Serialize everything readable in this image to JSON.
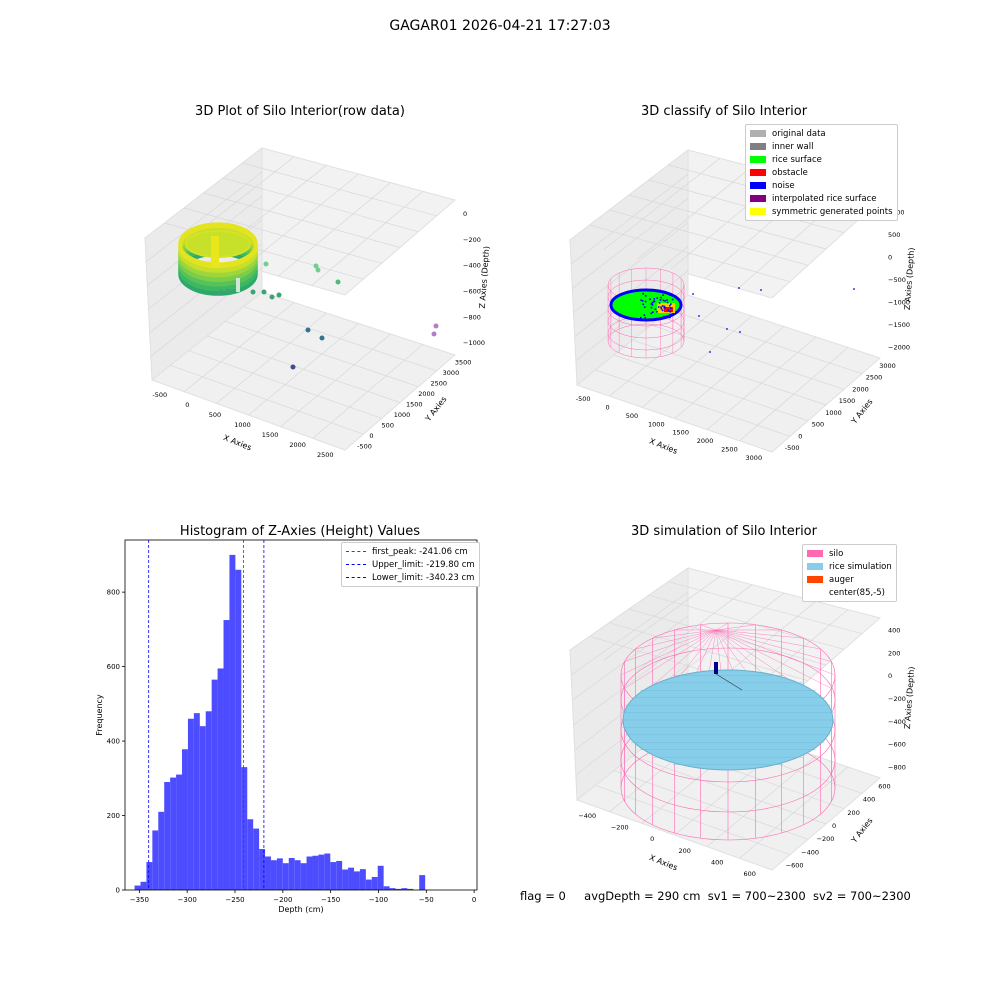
{
  "figure": {
    "suptitle": "GAGAR01 2026-04-21 17:27:03"
  },
  "chart_data": [
    {
      "type": "scatter",
      "projection": "3d",
      "title": "3D Plot of Silo Interior(row data)",
      "xlabel": "X Axies",
      "ylabel": "Y Axies",
      "zlabel": "Z Axies (Depth)",
      "x_ticks": [
        "-500",
        "0",
        "500",
        "1000",
        "1500",
        "2000",
        "2500"
      ],
      "y_ticks": [
        "-500",
        "0",
        "500",
        "1000",
        "1500",
        "2000",
        "2500",
        "3000",
        "3500"
      ],
      "z_ticks": [
        "0",
        "−200",
        "−400",
        "−600",
        "−800",
        "−1000"
      ],
      "colormap": "viridis",
      "description_points": "dense ring of points near x≈0, y≈0, z≈-250 plus scattered outliers",
      "grid": true
    },
    {
      "type": "scatter",
      "projection": "3d",
      "title": "3D classify of Silo Interior",
      "xlabel": "X Axies",
      "ylabel": "Y Axies",
      "zlabel": "Z Axies (Depth)",
      "x_ticks": [
        "-500",
        "0",
        "500",
        "1000",
        "1500",
        "2000",
        "2500",
        "3000"
      ],
      "y_ticks": [
        "-500",
        "0",
        "500",
        "1000",
        "1500",
        "2000",
        "2500",
        "3000"
      ],
      "z_ticks": [
        "1000",
        "500",
        "0",
        "−500",
        "−1000",
        "−1500",
        "−2000"
      ],
      "legend": [
        {
          "label": "original data",
          "color": "#b0b0b0"
        },
        {
          "label": "inner wall",
          "color": "#808080"
        },
        {
          "label": "rice surface",
          "color": "#00ff00"
        },
        {
          "label": "obstacle",
          "color": "#ff0000"
        },
        {
          "label": "noise",
          "color": "#0000ff"
        },
        {
          "label": "interpolated rice surface",
          "color": "#800080"
        },
        {
          "label": "symmetric generated points",
          "color": "#ffff00"
        }
      ],
      "legend_loc": "upper right",
      "grid": true
    },
    {
      "type": "bar",
      "subtype": "histogram",
      "title": "Histogram of Z-Axies (Height) Values",
      "xlabel": "Depth (cm)",
      "ylabel": "Frequency",
      "bar_color": "#4d4dff",
      "bin_width": 6.2,
      "bins_start": -355,
      "counts": [
        12,
        22,
        75,
        160,
        210,
        290,
        302,
        310,
        378,
        460,
        475,
        440,
        480,
        565,
        595,
        725,
        900,
        860,
        330,
        190,
        165,
        110,
        90,
        80,
        85,
        72,
        86,
        80,
        72,
        90,
        92,
        95,
        98,
        75,
        78,
        55,
        60,
        50,
        56,
        28,
        35,
        65,
        10,
        5,
        3,
        5,
        3,
        0,
        40
      ],
      "xlim": [
        -365,
        3
      ],
      "ylim": [
        0,
        940
      ],
      "x_ticks": [
        "−350",
        "−300",
        "−250",
        "−200",
        "−150",
        "−100",
        "−50",
        "0"
      ],
      "x_tick_values": [
        -350,
        -300,
        -250,
        -200,
        -150,
        -100,
        -50,
        0
      ],
      "y_ticks": [
        "0",
        "200",
        "400",
        "600",
        "800"
      ],
      "y_tick_values": [
        0,
        200,
        400,
        600,
        800
      ],
      "lines": [
        {
          "label": "first_peak: -241.06 cm",
          "x": -241.06,
          "color": "#ff0000"
        },
        {
          "label": "Upper_limit: -219.80 cm",
          "x": -219.8,
          "color": "#0000ff"
        },
        {
          "label": "Lower_limit: -340.23 cm",
          "x": -340.23,
          "color": "#0000ff"
        }
      ],
      "legend_loc": "upper right"
    },
    {
      "type": "surface",
      "projection": "3d",
      "title": "3D simulation of Silo Interior",
      "xlabel": "X Axies",
      "ylabel": "Y Axies",
      "zlabel": "Z Axies (Depth)",
      "x_ticks": [
        "−400",
        "−200",
        "0",
        "200",
        "400",
        "600"
      ],
      "y_ticks": [
        "−600",
        "−400",
        "−200",
        "0",
        "200",
        "400",
        "600"
      ],
      "z_ticks": [
        "400",
        "200",
        "0",
        "−200",
        "−400",
        "−600",
        "−800"
      ],
      "legend": [
        {
          "label": "silo",
          "color": "#ff69b4"
        },
        {
          "label": "rice simulation",
          "color": "#87ceeb"
        },
        {
          "label": "auger",
          "color": "#ff4500"
        },
        {
          "label": "center(85,-5)",
          "color": "#ffffff"
        }
      ],
      "legend_loc": "upper right",
      "grid": true
    }
  ],
  "footer": {
    "flag": "flag = 0",
    "avg_depth": "avgDepth = 290 cm",
    "sv1": "sv1 = 700~2300",
    "sv2": "sv2 = 700~2300"
  }
}
